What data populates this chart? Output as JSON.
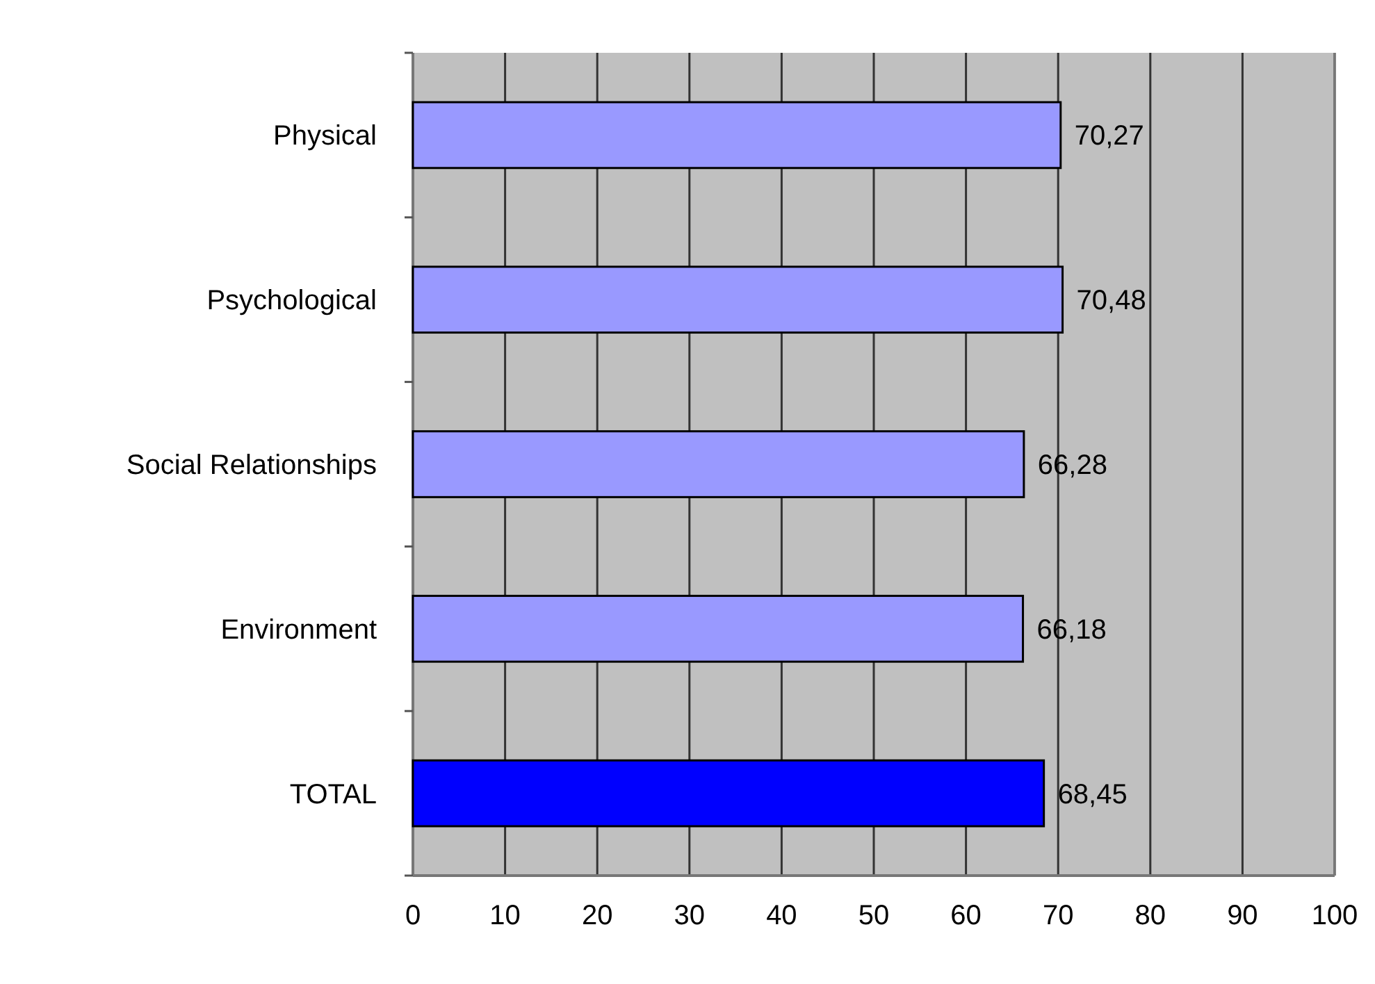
{
  "chart_data": {
    "type": "bar",
    "orientation": "horizontal",
    "categories": [
      "Physical",
      "Psychological",
      "Social Relationships",
      "Environment",
      "TOTAL"
    ],
    "values": [
      70.27,
      70.48,
      66.28,
      66.18,
      68.45
    ],
    "colors": [
      "#9999ff",
      "#9999ff",
      "#9999ff",
      "#9999ff",
      "#0000ff"
    ],
    "value_labels": [
      "70,27",
      "70,48",
      "66,28",
      "66,18",
      "68,45"
    ],
    "xlim": [
      0,
      100
    ],
    "xticks": [
      0,
      10,
      20,
      30,
      40,
      50,
      60,
      70,
      80,
      90,
      100
    ],
    "grid": "x"
  }
}
